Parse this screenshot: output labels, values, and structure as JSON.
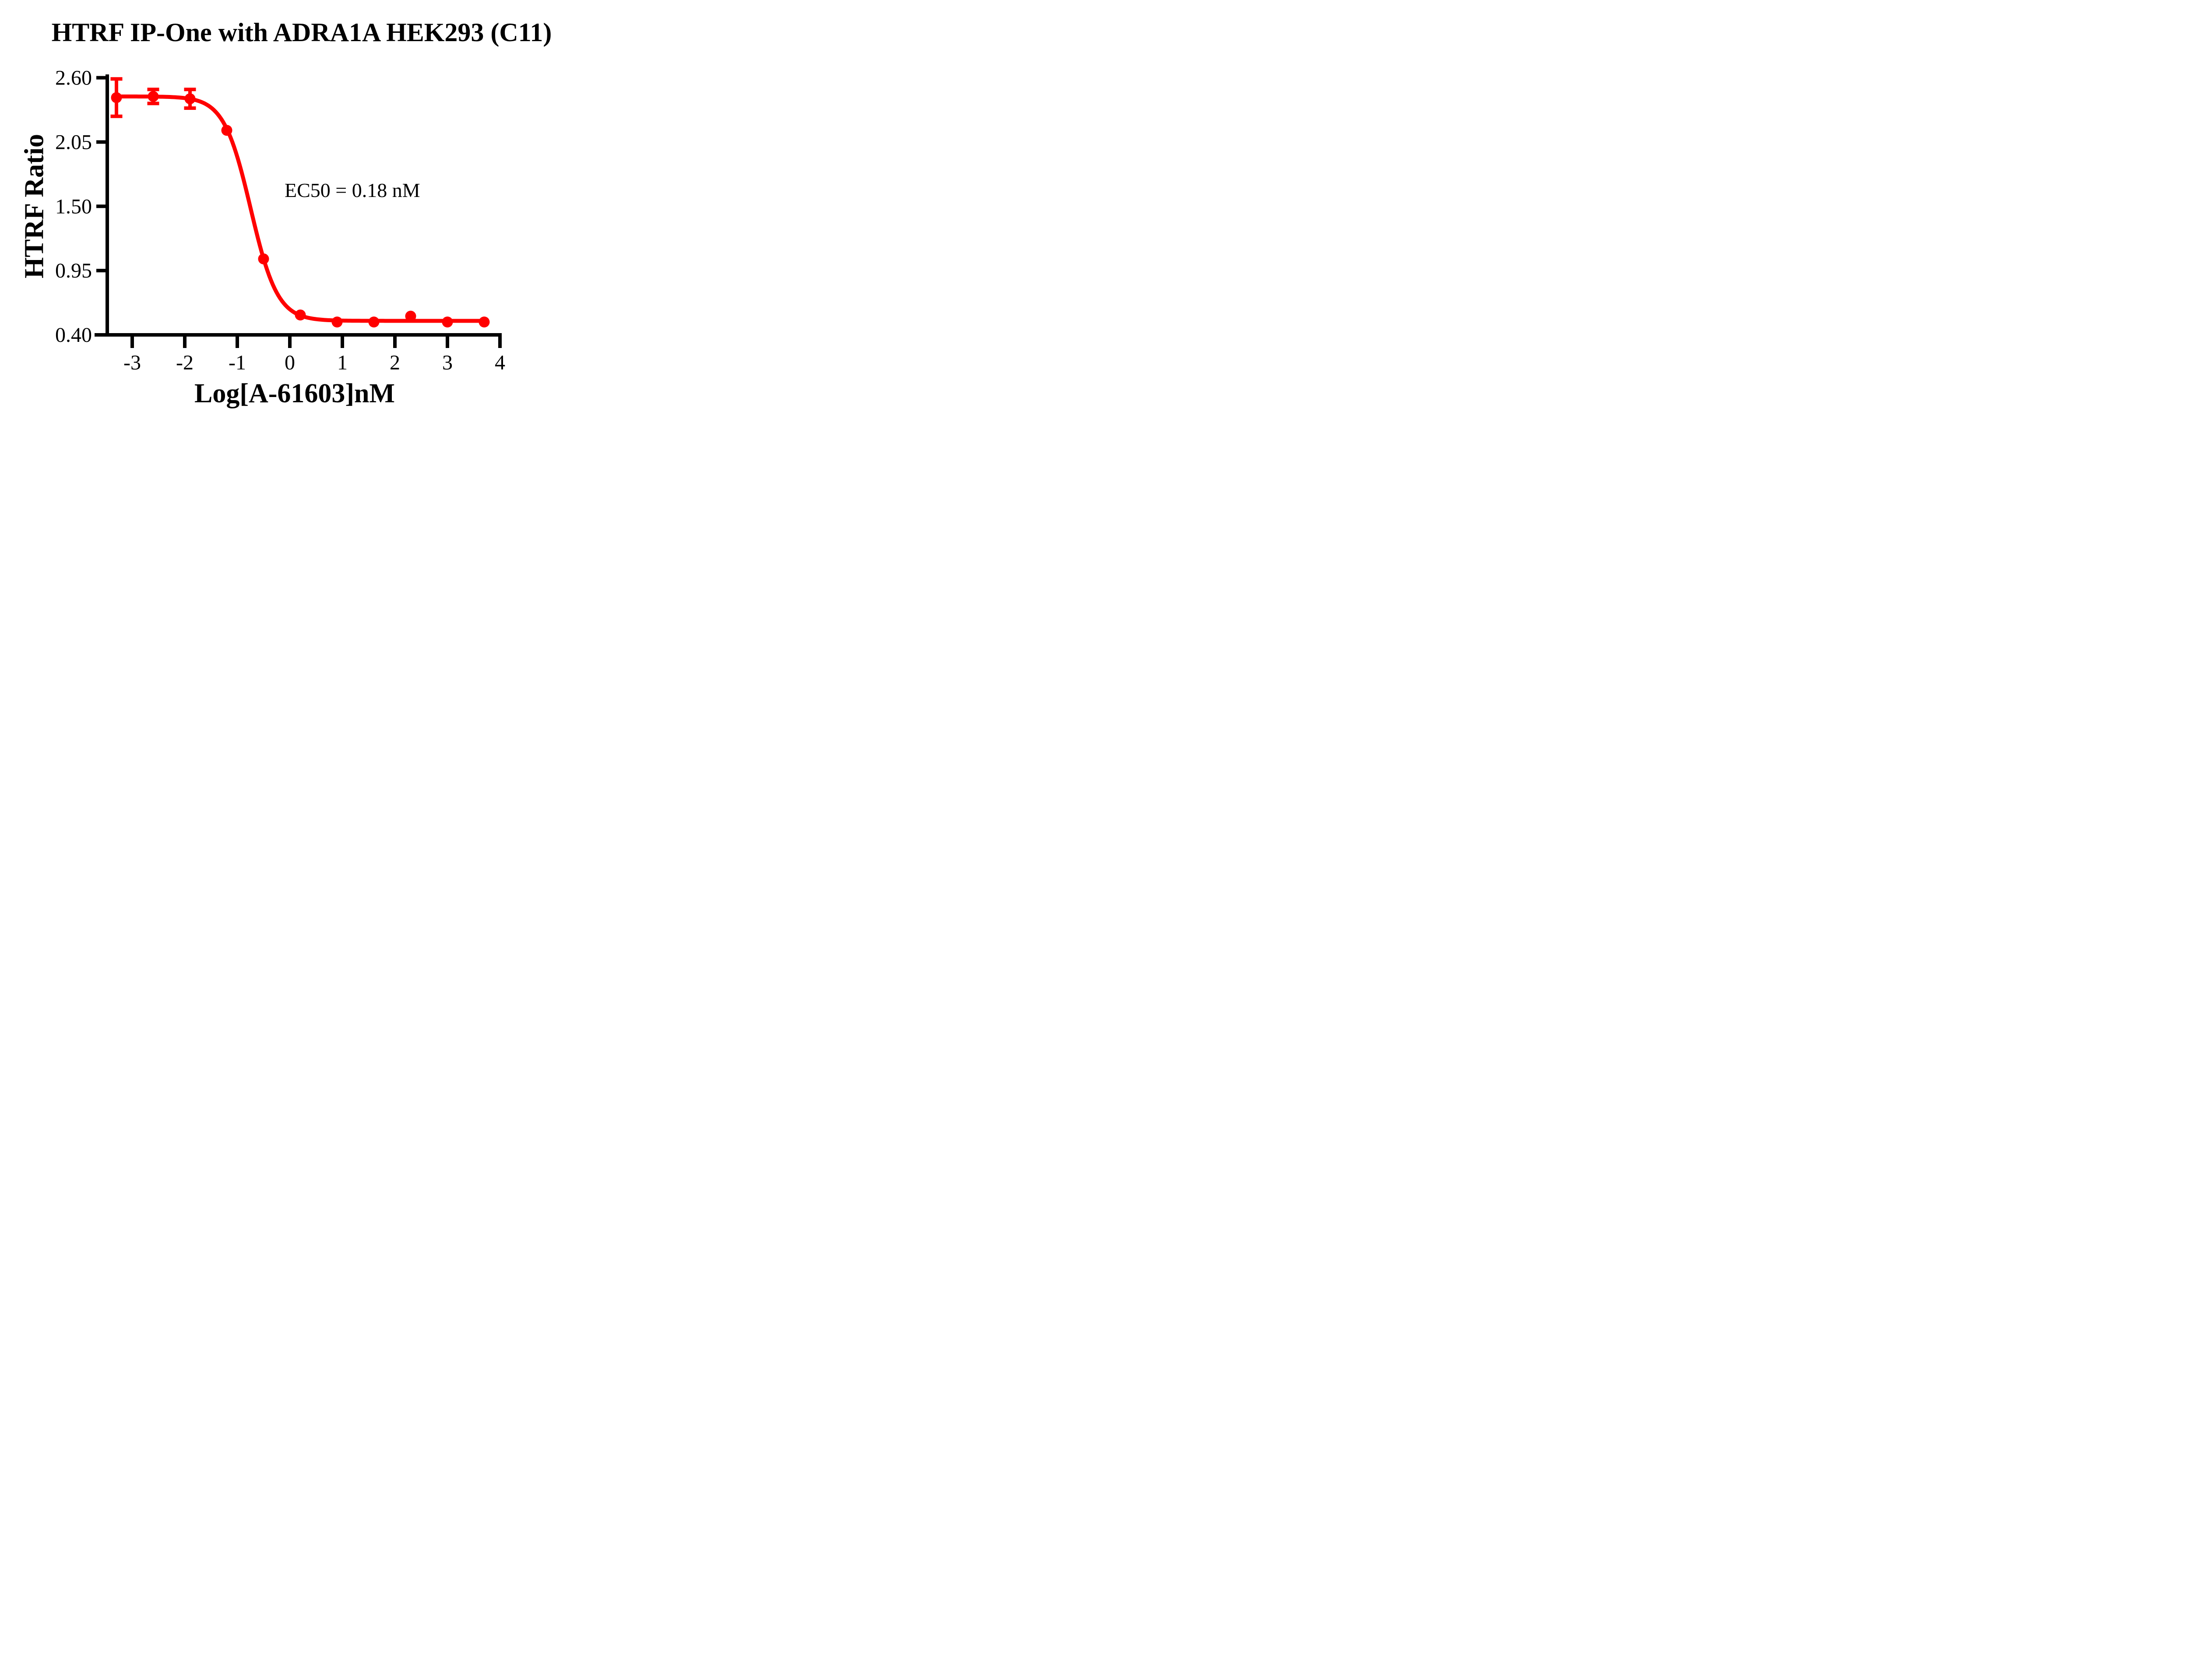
{
  "title": "HTRF IP-One with ADRA1A HEK293 (C11)",
  "annotation": {
    "ec50_label": "EC50 = 0.18 nM"
  },
  "colors": {
    "series": "#FF0000",
    "axis": "#000000",
    "background": "#FFFFFF"
  },
  "chart_data": {
    "type": "scatter",
    "title": "HTRF IP-One with ADRA1A HEK293 (C11)",
    "xlabel": "Log[A-61603]nM",
    "ylabel": "HTRF Ratio",
    "xlim": [
      -3.72,
      4.03
    ],
    "ylim": [
      0.4,
      2.6
    ],
    "x_ticks": [
      "-3",
      "-2",
      "-1",
      "0",
      "1",
      "2",
      "3",
      "4"
    ],
    "x_tick_values": [
      -3,
      -2,
      -1,
      0,
      1,
      2,
      3,
      4
    ],
    "y_ticks": [
      "2.60",
      "2.05",
      "1.50",
      "0.95",
      "0.40"
    ],
    "y_tick_values": [
      2.6,
      2.05,
      1.5,
      0.95,
      0.4
    ],
    "grid": "off",
    "legend": "none",
    "ec50_nM": 0.18,
    "series": [
      {
        "name": "A-61603",
        "color": "#FF0000",
        "points": [
          {
            "x": -3.3,
            "y": 2.43,
            "err": 0.16
          },
          {
            "x": -2.6,
            "y": 2.44,
            "err": 0.06
          },
          {
            "x": -1.9,
            "y": 2.42,
            "err": 0.08
          },
          {
            "x": -1.2,
            "y": 2.15,
            "err": 0
          },
          {
            "x": -0.5,
            "y": 1.05,
            "err": 0
          },
          {
            "x": 0.2,
            "y": 0.57,
            "err": 0
          },
          {
            "x": 0.9,
            "y": 0.51,
            "err": 0
          },
          {
            "x": 1.6,
            "y": 0.51,
            "err": 0
          },
          {
            "x": 2.3,
            "y": 0.56,
            "err": 0
          },
          {
            "x": 3.0,
            "y": 0.51,
            "err": 0
          },
          {
            "x": 3.7,
            "y": 0.51,
            "err": 0
          }
        ]
      }
    ],
    "fit_curve": {
      "model": "4PL sigmoid (decreasing)",
      "top": 2.44,
      "bottom": 0.52,
      "log_ec50": -0.745,
      "hill": 1.7,
      "x_start": -3.3,
      "x_end": 3.7
    }
  }
}
